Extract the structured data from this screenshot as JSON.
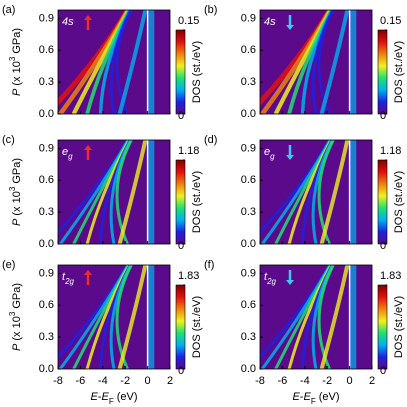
{
  "chart_data": [
    {
      "type": "heatmap",
      "panel_label": "(a)",
      "label_main": "4s",
      "spin": "up",
      "arrow_color": "#e8302a",
      "xlim": [
        -8,
        2
      ],
      "xticks": [
        -8,
        -6,
        -4,
        -2,
        0,
        2
      ],
      "xtick_labels": false,
      "ylim": [
        0,
        0.98
      ],
      "yticks": [
        {
          "value": 0,
          "label": "0.0"
        },
        0.3,
        0.6,
        0.9
      ],
      "ytick_labels": true,
      "ylabel": [
        "P",
        " (x 10",
        "3",
        " GPa)"
      ],
      "clim": [
        0,
        0.15
      ],
      "cticks": [
        0,
        0.15
      ],
      "clabel": "DOS (st./eV)",
      "colormap": [
        "#5b0a8c",
        "#2020e0",
        "#00b0f0",
        "#20e070",
        "#f0f020",
        "#f08010",
        "#e01010",
        "#800000"
      ]
    },
    {
      "type": "heatmap",
      "panel_label": "(b)",
      "label_main": "4s",
      "spin": "down",
      "arrow_color": "#3ec8f0",
      "xlim": [
        -8,
        2
      ],
      "xticks": [
        -8,
        -6,
        -4,
        -2,
        0,
        2
      ],
      "xtick_labels": false,
      "ylim": [
        0,
        0.98
      ],
      "yticks": [
        {
          "value": 0,
          "label": "0.0"
        },
        0.3,
        0.6,
        0.9
      ],
      "ytick_labels": true,
      "clim": [
        0,
        0.15
      ],
      "cticks": [
        0,
        0.15
      ],
      "clabel": "DOS (st./eV)",
      "colormap": [
        "#5b0a8c",
        "#2020e0",
        "#00b0f0",
        "#20e070",
        "#f0f020",
        "#f08010",
        "#e01010",
        "#800000"
      ]
    },
    {
      "type": "heatmap",
      "panel_label": "(c)",
      "label_main": "e",
      "label_sub": "g",
      "spin": "up",
      "arrow_color": "#e8302a",
      "xlim": [
        -8,
        2
      ],
      "xticks": [
        -8,
        -6,
        -4,
        -2,
        0,
        2
      ],
      "xtick_labels": false,
      "ylim": [
        0,
        0.98
      ],
      "yticks": [
        {
          "value": 0,
          "label": "0.0"
        },
        0.3,
        0.6,
        0.9
      ],
      "ytick_labels": true,
      "ylabel": [
        "P",
        " (x 10",
        "3",
        " GPa)"
      ],
      "clim": [
        0,
        1.18
      ],
      "cticks": [
        0,
        1.18
      ],
      "clabel": "DOS (st./eV)",
      "colormap": [
        "#5b0a8c",
        "#2020e0",
        "#00b0f0",
        "#20e070",
        "#f0f020",
        "#f08010",
        "#e01010",
        "#800000"
      ]
    },
    {
      "type": "heatmap",
      "panel_label": "(d)",
      "label_main": "e",
      "label_sub": "g",
      "spin": "down",
      "arrow_color": "#3ec8f0",
      "xlim": [
        -8,
        2
      ],
      "xticks": [
        -8,
        -6,
        -4,
        -2,
        0,
        2
      ],
      "xtick_labels": false,
      "ylim": [
        0,
        0.98
      ],
      "yticks": [
        {
          "value": 0,
          "label": "0.0"
        },
        0.3,
        0.6,
        0.9
      ],
      "ytick_labels": true,
      "clim": [
        0,
        1.18
      ],
      "cticks": [
        0,
        1.18
      ],
      "clabel": "DOS (st./eV)",
      "colormap": [
        "#5b0a8c",
        "#2020e0",
        "#00b0f0",
        "#20e070",
        "#f0f020",
        "#f08010",
        "#e01010",
        "#800000"
      ]
    },
    {
      "type": "heatmap",
      "panel_label": "(e)",
      "label_main": "t",
      "label_sub": "2g",
      "spin": "up",
      "arrow_color": "#e8302a",
      "xlim": [
        -8,
        2
      ],
      "xticks": [
        -8,
        -6,
        -4,
        -2,
        0,
        2
      ],
      "xtick_labels": true,
      "xlabel": [
        "E",
        "-",
        "E",
        "F",
        " (eV)"
      ],
      "ylim": [
        0,
        0.98
      ],
      "yticks": [
        {
          "value": 0,
          "label": "0.0"
        },
        0.3,
        0.6,
        0.9
      ],
      "ytick_labels": true,
      "ylabel": [
        "P",
        " (x 10",
        "3",
        " GPa)"
      ],
      "clim": [
        0,
        1.83
      ],
      "cticks": [
        0,
        1.83
      ],
      "clabel": "DOS (st./eV)",
      "colormap": [
        "#5b0a8c",
        "#2020e0",
        "#00b0f0",
        "#20e070",
        "#f0f020",
        "#f08010",
        "#e01010",
        "#800000"
      ]
    },
    {
      "type": "heatmap",
      "panel_label": "(f)",
      "label_main": "t",
      "label_sub": "2g",
      "spin": "down",
      "arrow_color": "#3ec8f0",
      "xlim": [
        -8,
        2
      ],
      "xticks": [
        -8,
        -6,
        -4,
        -2,
        0,
        2
      ],
      "xtick_labels": true,
      "xlabel": [
        "E",
        "-",
        "E",
        "F",
        " (eV)"
      ],
      "ylim": [
        0,
        0.98
      ],
      "yticks": [
        {
          "value": 0,
          "label": "0.0"
        },
        0.3,
        0.6,
        0.9
      ],
      "ytick_labels": true,
      "clim": [
        0,
        1.83
      ],
      "cticks": [
        0,
        1.83
      ],
      "clabel": "DOS (st./eV)",
      "colormap": [
        "#5b0a8c",
        "#2020e0",
        "#00b0f0",
        "#20e070",
        "#f0f020",
        "#f08010",
        "#e01010",
        "#800000"
      ]
    }
  ]
}
